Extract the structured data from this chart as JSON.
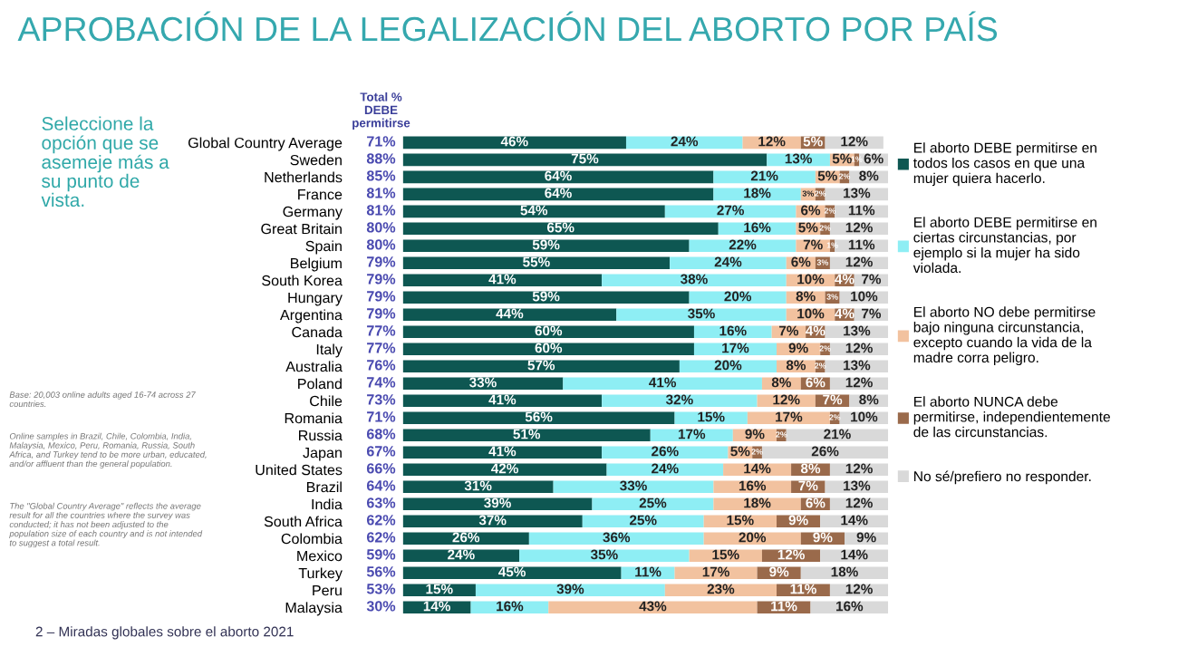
{
  "chart_data": {
    "type": "bar",
    "orientation": "horizontal",
    "stacked": true,
    "title": "APROBACIÓN DE LA LEGALIZACIÓN DEL ABORTO POR PAÍS",
    "categories": [
      "Global Country Average",
      "Sweden",
      "Netherlands",
      "France",
      "Germany",
      "Great Britain",
      "Spain",
      "Belgium",
      "South Korea",
      "Hungary",
      "Argentina",
      "Canada",
      "Italy",
      "Australia",
      "Poland",
      "Chile",
      "Romania",
      "Russia",
      "Japan",
      "United States",
      "Brazil",
      "India",
      "South Africa",
      "Colombia",
      "Mexico",
      "Turkey",
      "Peru",
      "Malaysia"
    ],
    "series": [
      {
        "name": "El aborto DEBE permitirse en todos los casos en que una mujer quiera hacerlo.",
        "color": "#0e5752",
        "values": [
          46,
          75,
          64,
          64,
          54,
          65,
          59,
          55,
          41,
          59,
          44,
          60,
          60,
          57,
          33,
          41,
          56,
          51,
          41,
          42,
          31,
          39,
          37,
          26,
          24,
          45,
          15,
          14
        ],
        "value_labels": [
          "46%",
          "75%",
          "64%",
          "64%",
          "54%",
          "65%",
          "59%",
          "55%",
          "41%",
          "59%",
          "44%",
          "60%",
          "60%",
          "57%",
          "33%",
          "41%",
          "56%",
          "51%",
          "41%",
          "42%",
          "31%",
          "39%",
          "37%",
          "26%",
          "24%",
          "45%",
          "15%",
          "14%"
        ]
      },
      {
        "name": "El aborto DEBE permitirse en ciertas circunstancias, por ejemplo si la mujer ha sido violada.",
        "color": "#8eeef4",
        "values": [
          24,
          13,
          21,
          18,
          27,
          16,
          22,
          24,
          38,
          20,
          35,
          16,
          17,
          20,
          41,
          32,
          15,
          17,
          26,
          24,
          33,
          25,
          25,
          36,
          35,
          11,
          39,
          16
        ],
        "value_labels": [
          "24%",
          "13%",
          "21%",
          "18%",
          "27%",
          "16%",
          "22%",
          "24%",
          "38%",
          "20%",
          "35%",
          "16%",
          "17%",
          "20%",
          "41%",
          "32%",
          "15%",
          "17%",
          "26%",
          "24%",
          "33%",
          "25%",
          "25%",
          "36%",
          "35%",
          "11%",
          "39%",
          "16%"
        ]
      },
      {
        "name": "El aborto NO debe permitirse bajo ninguna circunstancia, excepto cuando la vida de la madre corra peligro.",
        "color": "#f2c29f",
        "values": [
          12,
          5,
          5,
          3,
          6,
          5,
          7,
          6,
          10,
          8,
          10,
          7,
          9,
          8,
          8,
          12,
          17,
          9,
          5,
          14,
          16,
          18,
          15,
          20,
          15,
          17,
          23,
          43
        ],
        "value_labels": [
          "12%",
          "5%",
          "5%",
          "3%",
          "6%",
          "5%",
          "7%",
          "6%",
          "10%",
          "8%",
          "10%",
          "7%",
          "9%",
          "8%",
          "8%",
          "12%",
          "17%",
          "9%",
          "5%",
          "14%",
          "16%",
          "18%",
          "15%",
          "20%",
          "15%",
          "17%",
          "23%",
          "43%"
        ]
      },
      {
        "name": "El aborto NUNCA debe permitirse, independientemente de las circunstancias.",
        "color": "#9a6a4b",
        "values": [
          5,
          1,
          2,
          2,
          2,
          2,
          1,
          3,
          4,
          3,
          4,
          4,
          2,
          2,
          6,
          7,
          2,
          2,
          2,
          8,
          7,
          6,
          9,
          9,
          12,
          9,
          11,
          11
        ],
        "value_labels": [
          "5%",
          "1%",
          "2%",
          "2%",
          "2%",
          "2%",
          "1%",
          "3%",
          "4%",
          "3%",
          "4%",
          "4%",
          "2%",
          "2%",
          "6%",
          "7%",
          "2%",
          "2%",
          "2%",
          "8%",
          "7%",
          "6%",
          "9%",
          "9%",
          "12%",
          "9%",
          "11%",
          "11%"
        ]
      },
      {
        "name": "No sé/prefiero no responder.",
        "color": "#d9d9d9",
        "values": [
          12,
          6,
          8,
          13,
          11,
          12,
          11,
          12,
          7,
          10,
          7,
          13,
          12,
          13,
          12,
          8,
          10,
          21,
          26,
          12,
          13,
          12,
          14,
          9,
          14,
          18,
          12,
          16
        ],
        "value_labels": [
          "12%",
          "6%",
          "8%",
          "13%",
          "11%",
          "12%",
          "11%",
          "12%",
          "7%",
          "10%",
          "7%",
          "13%",
          "12%",
          "13%",
          "12%",
          "8%",
          "10%",
          "21%",
          "26%",
          "12%",
          "13%",
          "12%",
          "14%",
          "9%",
          "14%",
          "18%",
          "12%",
          "16%"
        ]
      }
    ],
    "annotations": [
      "Seleccione la opción que se asemeje más a su punto de vista.",
      "Total % DEBE permitirse",
      "Base: 20,003 online adults aged 16-74 across 27 countries.",
      "Online samples in Brazil, Chile, Colombia, India, Malaysia, Mexico, Peru, Romania, Russia, South Africa, and Turkey tend to be more urban, educated, and/or affluent than the general population.",
      "The \"Global Country Average\" reflects the average result for all the countries where the survey was conducted; it has not been adjusted to the population size of each country and is not intended to suggest a total result.",
      "2 – Miradas globales sobre el aborto 2021",
      "71%",
      "88%",
      "85%",
      "81%",
      "81%",
      "80%",
      "80%",
      "79%",
      "79%",
      "79%",
      "79%",
      "77%",
      "77%",
      "76%",
      "74%",
      "73%",
      "71%",
      "68%",
      "67%",
      "66%",
      "64%",
      "63%",
      "62%",
      "62%",
      "59%",
      "56%",
      "53%",
      "30%"
    ],
    "legend": "right",
    "tick_labels": "y",
    "grid": false
  }
}
